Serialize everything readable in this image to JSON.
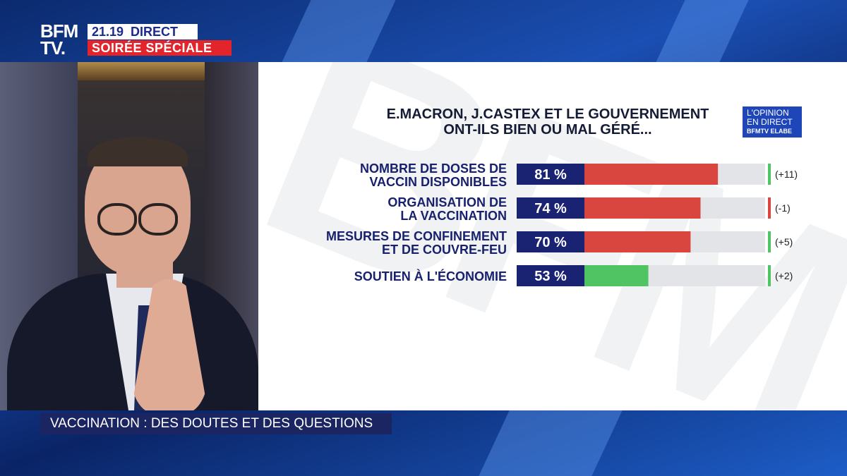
{
  "channel": {
    "logo_line1": "BFM",
    "logo_line2": "TV.",
    "time": "21.19",
    "live": "DIRECT",
    "program": "SOIRÉE SPÉCIALE"
  },
  "badge": {
    "line1": "L'OPINION",
    "line2": "EN DIRECT",
    "line3": "BFMTV ELABE"
  },
  "lower_third": "VACCINATION : DES DOUTES ET DES QUESTIONS",
  "colors": {
    "navy": "#1a2272",
    "red": "#d9453f",
    "green": "#50c463",
    "track": "#e3e4e7",
    "channel_red": "#e3242b"
  },
  "chart_data": {
    "type": "bar",
    "title_line1": "E.MACRON, J.CASTEX ET LE GOUVERNEMENT",
    "title_line2": "ONT-ILS BIEN OU MAL GÉRÉ...",
    "categories": [
      [
        "NOMBRE DE DOSES DE",
        "VACCIN DISPONIBLES"
      ],
      [
        "ORGANISATION DE",
        "LA VACCINATION"
      ],
      [
        "MESURES DE CONFINEMENT",
        "ET DE COUVRE-FEU"
      ],
      [
        "SOUTIEN À L'ÉCONOMIE"
      ]
    ],
    "values": [
      81,
      74,
      70,
      53
    ],
    "value_labels": [
      "81 %",
      "74 %",
      "70 %",
      "53 %"
    ],
    "bar_colors": [
      "#d9453f",
      "#d9453f",
      "#d9453f",
      "#50c463"
    ],
    "changes": [
      "(+11)",
      "(-1)",
      "(+5)",
      "(+2)"
    ],
    "change_colors": [
      "#50c463",
      "#d9453f",
      "#50c463",
      "#50c463"
    ],
    "xlim": [
      0,
      100
    ]
  }
}
